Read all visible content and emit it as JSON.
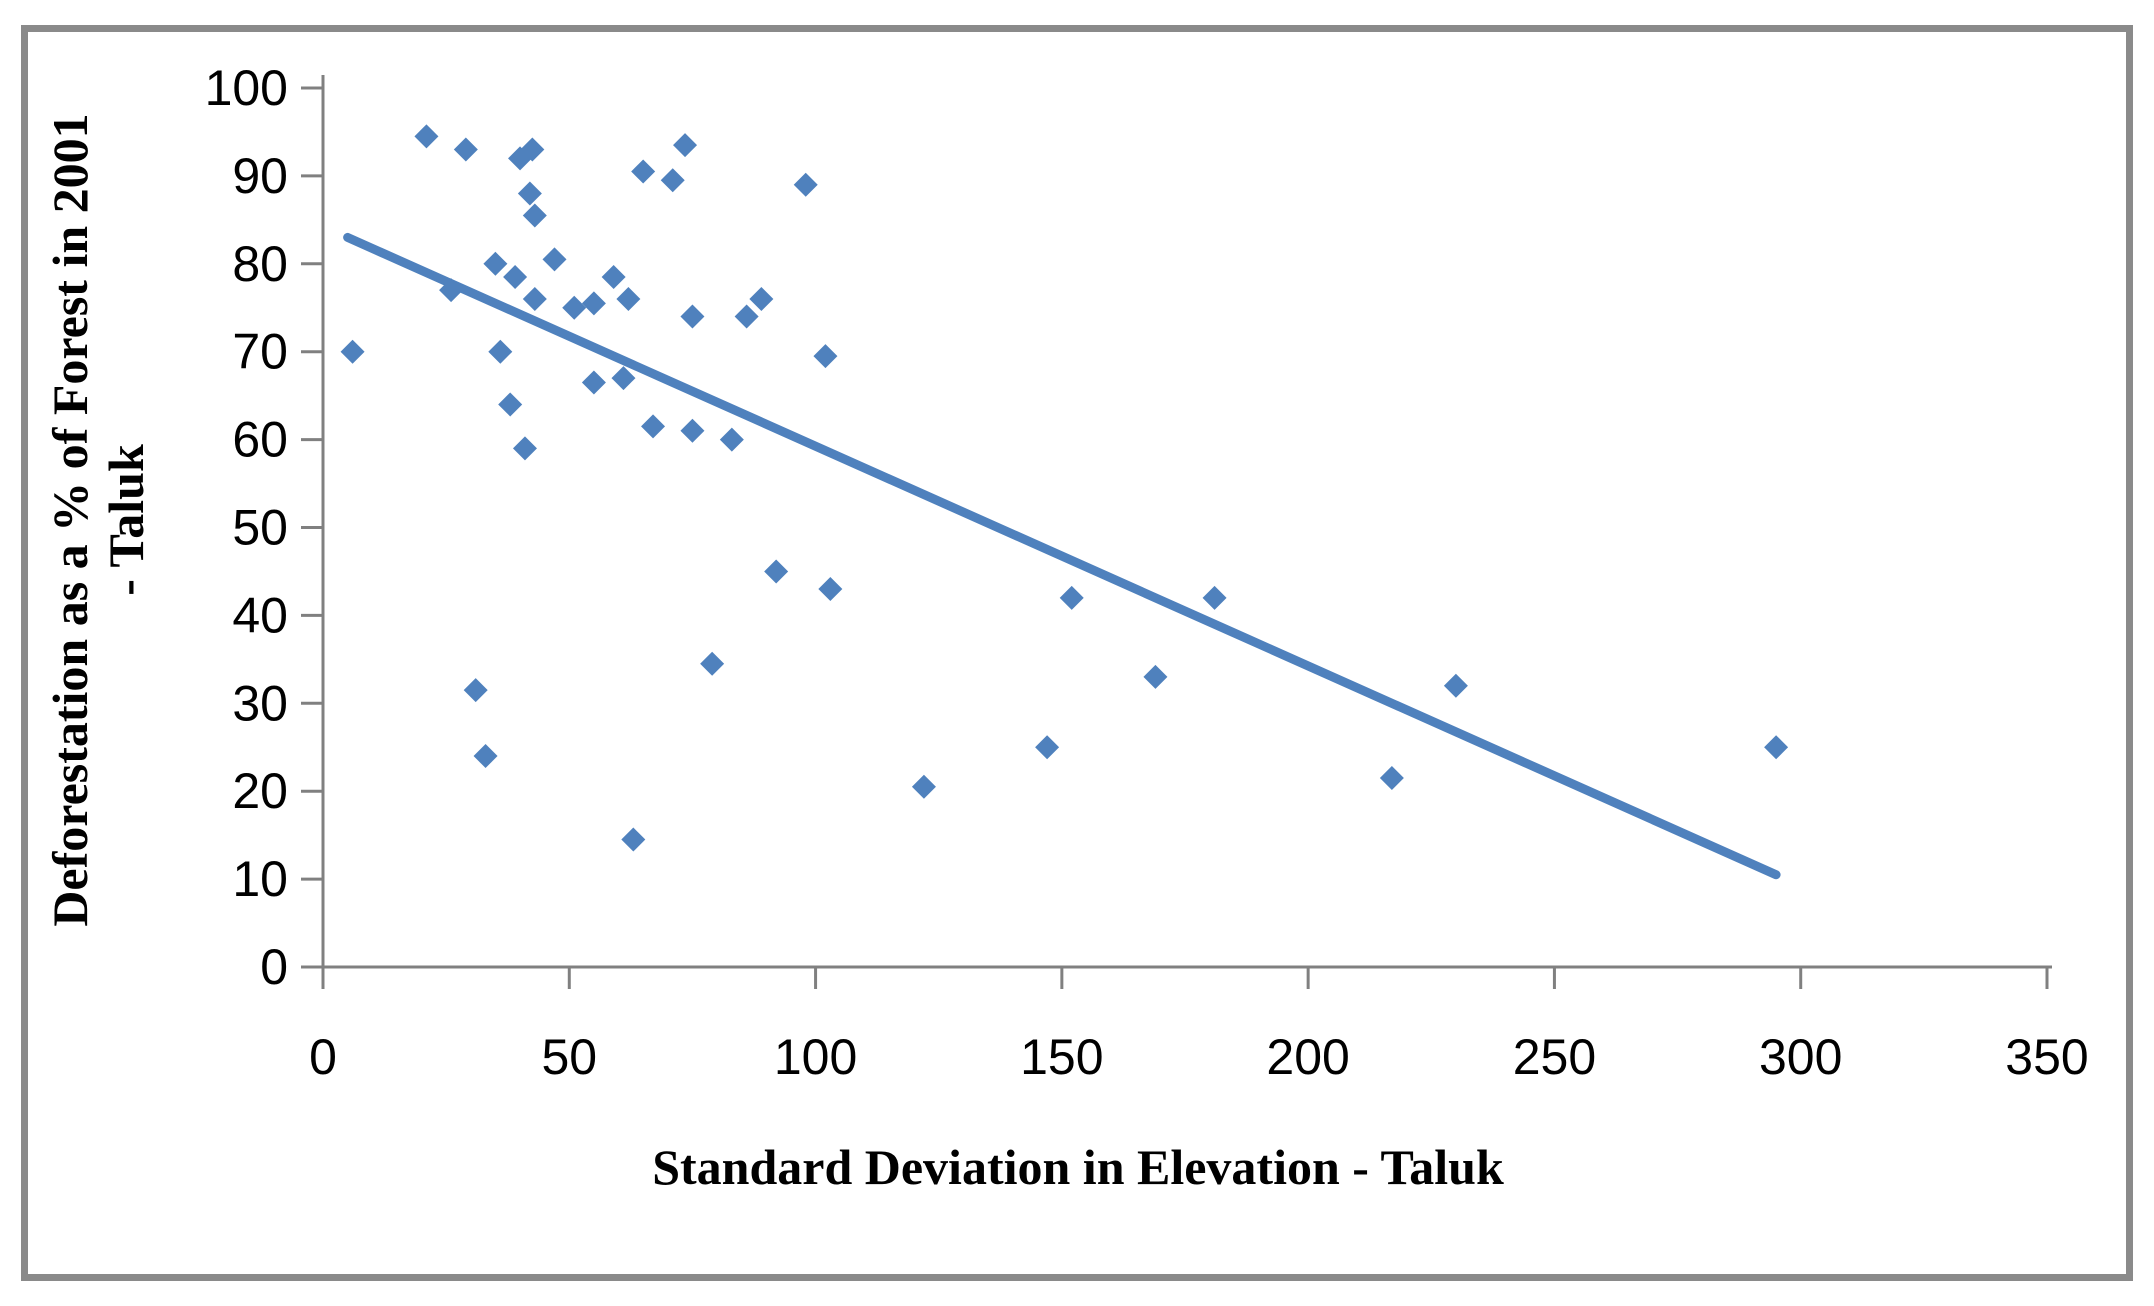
{
  "chart_data": {
    "type": "scatter",
    "title": "",
    "xlabel": "Standard Deviation in Elevation - Taluk",
    "ylabel": "Deforestation as a % of Forest in 2001 - Taluk",
    "ylabel_lines": [
      "Deforestation as a % of Forest in 2001",
      "- Taluk"
    ],
    "xlim": [
      0,
      350
    ],
    "ylim": [
      0,
      100
    ],
    "xticks": [
      0,
      50,
      100,
      150,
      200,
      250,
      300,
      350
    ],
    "yticks": [
      0,
      10,
      20,
      30,
      40,
      50,
      60,
      70,
      80,
      90,
      100
    ],
    "grid": false,
    "legend_position": "none",
    "marker": "diamond",
    "marker_color": "#4F81BD",
    "trendline": {
      "x1": 5,
      "y1": 83,
      "x2": 295,
      "y2": 10.5,
      "color": "#4F81BD"
    },
    "points": [
      [
        6,
        70
      ],
      [
        21,
        94.5
      ],
      [
        29,
        93
      ],
      [
        40,
        92
      ],
      [
        42.5,
        93
      ],
      [
        42,
        88
      ],
      [
        43,
        85.5
      ],
      [
        26,
        77
      ],
      [
        35,
        80
      ],
      [
        39,
        78.5
      ],
      [
        43,
        76
      ],
      [
        47,
        80.5
      ],
      [
        51,
        75
      ],
      [
        55,
        75.5
      ],
      [
        59,
        78.5
      ],
      [
        62,
        76
      ],
      [
        36,
        70
      ],
      [
        38,
        64
      ],
      [
        41,
        59
      ],
      [
        31,
        31.5
      ],
      [
        33,
        24
      ],
      [
        65,
        90.5
      ],
      [
        71,
        89.5
      ],
      [
        73.5,
        93.5
      ],
      [
        98,
        89
      ],
      [
        55,
        66.5
      ],
      [
        61,
        67
      ],
      [
        67,
        61.5
      ],
      [
        75,
        61
      ],
      [
        83,
        60
      ],
      [
        75,
        74
      ],
      [
        86,
        74
      ],
      [
        89,
        76
      ],
      [
        102,
        69.5
      ],
      [
        92,
        45
      ],
      [
        103,
        43
      ],
      [
        79,
        34.5
      ],
      [
        63,
        14.5
      ],
      [
        122,
        20.5
      ],
      [
        147,
        25
      ],
      [
        152,
        42
      ],
      [
        169,
        33
      ],
      [
        181,
        42
      ],
      [
        217,
        21.5
      ],
      [
        230,
        32
      ],
      [
        295,
        25
      ]
    ]
  },
  "colors": {
    "axis": "#808080",
    "frame_border": "#8A8A8A",
    "text": "#000000",
    "accent_blue": "#4F81BD"
  }
}
